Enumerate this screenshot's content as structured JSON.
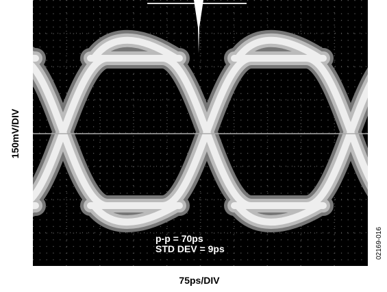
{
  "y_axis_label": "150mV/DIV",
  "x_axis_label": "75ps/DIV",
  "annotations": [
    "p-p = 70ps",
    "STD DEV = 9ps"
  ],
  "figure_id": "02169-016"
}
